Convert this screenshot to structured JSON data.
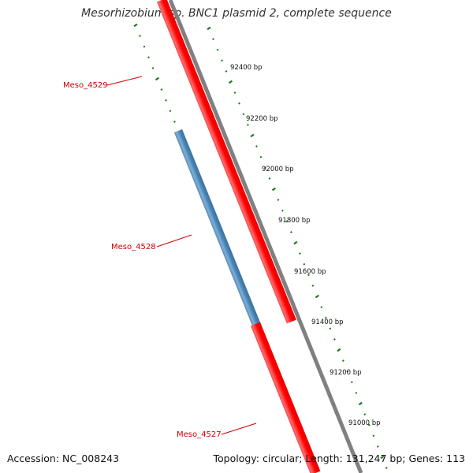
{
  "title": "Mesorhizobium sp. BNC1 plasmid 2, complete sequence",
  "footer": {
    "accession": "Accession: NC_008243",
    "summary": "Topology: circular; Length: 131,247 bp; Genes: 113"
  },
  "ticks": [
    {
      "label": "92400 bp",
      "bp": 92400
    },
    {
      "label": "92200 bp",
      "bp": 92200
    },
    {
      "label": "92000 bp",
      "bp": 92000
    },
    {
      "label": "91800 bp",
      "bp": 91800
    },
    {
      "label": "91600 bp",
      "bp": 91600
    },
    {
      "label": "91400 bp",
      "bp": 91400
    },
    {
      "label": "91200 bp",
      "bp": 91200
    },
    {
      "label": "91000 bp",
      "bp": 91000
    }
  ],
  "genes": [
    {
      "name": "Meso_4529",
      "strand": "forward",
      "color": "#ff0000"
    },
    {
      "name": "Meso_4528",
      "strand": "reverse",
      "color": "#4682b4"
    },
    {
      "name": "Meso_4527",
      "strand": "forward",
      "color": "#ff0000"
    }
  ],
  "colors": {
    "backbone": "#808080",
    "ticks": "#1a7a1a",
    "label_lines": "#cc0000"
  }
}
